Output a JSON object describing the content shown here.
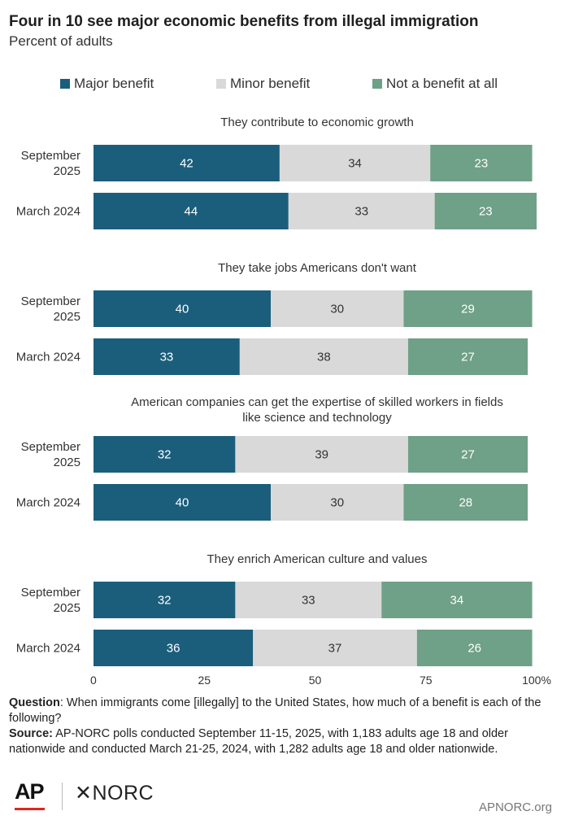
{
  "title": "Four in 10 see major economic benefits from illegal immigration",
  "subtitle": "Percent of adults",
  "legend": [
    {
      "label": "Major benefit",
      "color": "#1b5e7c"
    },
    {
      "label": "Minor benefit",
      "color": "#d9d9d9"
    },
    {
      "label": "Not a benefit at all",
      "color": "#6fa088"
    }
  ],
  "chart_data": {
    "type": "bar",
    "orientation": "horizontal",
    "stacked": true,
    "xlim": [
      0,
      100
    ],
    "x_ticks": [
      "0",
      "25",
      "50",
      "75",
      "100%"
    ],
    "series_names": [
      "Major benefit",
      "Minor benefit",
      "Not a benefit at all"
    ],
    "colors": [
      "#1b5e7c",
      "#d9d9d9",
      "#6fa088"
    ],
    "groups": [
      {
        "title": [
          "They contribute to economic growth"
        ],
        "rows": [
          {
            "label": [
              "September",
              "2025"
            ],
            "values": [
              42,
              34,
              23
            ]
          },
          {
            "label": [
              "March 2024"
            ],
            "values": [
              44,
              33,
              23
            ]
          }
        ]
      },
      {
        "title": [
          "They take jobs Americans don't want"
        ],
        "rows": [
          {
            "label": [
              "September",
              "2025"
            ],
            "values": [
              40,
              30,
              29
            ]
          },
          {
            "label": [
              "March 2024"
            ],
            "values": [
              33,
              38,
              27
            ]
          }
        ]
      },
      {
        "title": [
          "American companies can get the expertise of skilled workers in fields",
          "like science and technology"
        ],
        "rows": [
          {
            "label": [
              "September",
              "2025"
            ],
            "values": [
              32,
              39,
              27
            ]
          },
          {
            "label": [
              "March 2024"
            ],
            "values": [
              40,
              30,
              28
            ]
          }
        ]
      },
      {
        "title": [
          "They enrich American culture and values"
        ],
        "rows": [
          {
            "label": [
              "September",
              "2025"
            ],
            "values": [
              32,
              33,
              34
            ]
          },
          {
            "label": [
              "March 2024"
            ],
            "values": [
              36,
              37,
              26
            ]
          }
        ]
      }
    ]
  },
  "footnote": {
    "question_label": "Question",
    "question_text": ": When immigrants come [illegally] to the United States, how much of a benefit is each of the following?",
    "source_label": "Source:",
    "source_text": " AP-NORC polls conducted September 11-15, 2025, with 1,183 adults age 18 and older nationwide and conducted March 21-25, 2024, with 1,282 adults age 18 and older nationwide."
  },
  "footer": {
    "logo_ap": "AP",
    "logo_norc": "✕NORC",
    "site": "APNORC.org"
  }
}
